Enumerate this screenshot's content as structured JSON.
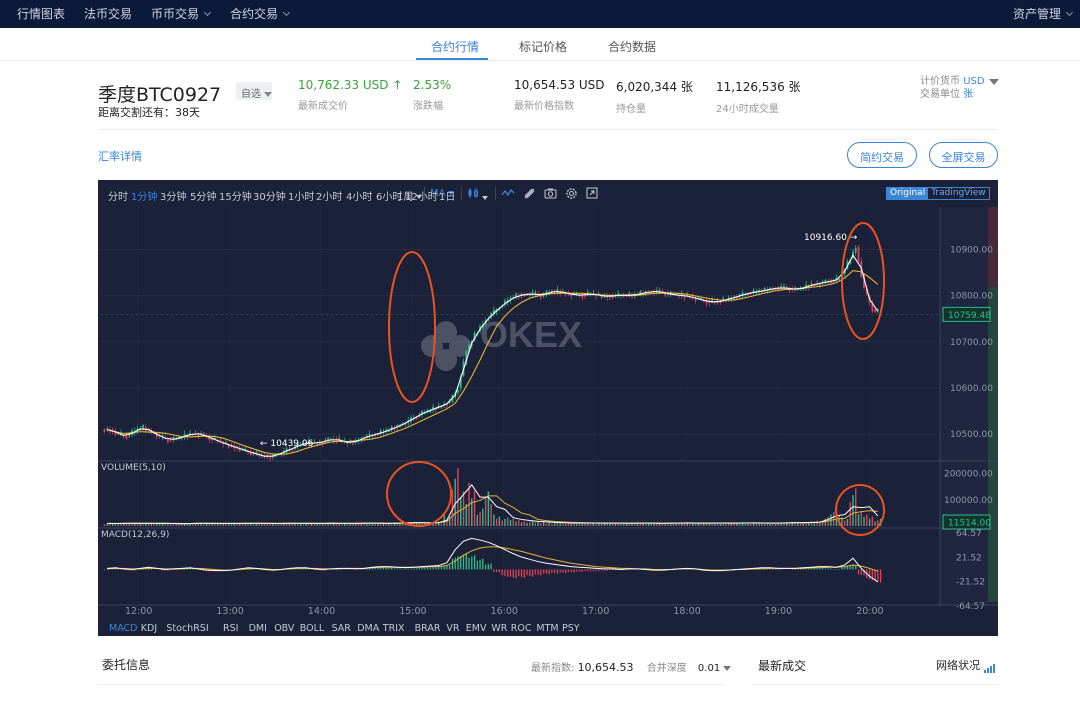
{
  "nav": {
    "items": [
      {
        "label": "行情图表",
        "dropdown": false
      },
      {
        "label": "法币交易",
        "dropdown": false
      },
      {
        "label": "币币交易",
        "dropdown": true
      },
      {
        "label": "合约交易",
        "dropdown": true
      }
    ],
    "asset": "资产管理"
  },
  "subtabs": [
    {
      "label": "合约行情",
      "active": true
    },
    {
      "label": "标记价格",
      "active": false
    },
    {
      "label": "合约数据",
      "active": false
    }
  ],
  "ticker": {
    "symbol": "季度BTC0927",
    "countdown": "距离交割还有：38天",
    "fav": "自选",
    "last_price": "10,762.33 USD",
    "last_price_arrow": "↑",
    "last_price_label": "最新成交价",
    "change": "2.53%",
    "change_label": "涨跌幅",
    "index_price": "10,654.53 USD",
    "index_price_label": "最新价格指数",
    "open_interest": "6,020,344 张",
    "open_interest_label": "持仓量",
    "volume_24h": "11,126,536 张",
    "volume_24h_label": "24小时成交量",
    "quote_currency_label": "计价货币",
    "quote_currency": "USD",
    "trade_unit_label": "交易单位",
    "trade_unit": "张"
  },
  "rate_link": "汇率详情",
  "buttons": {
    "simple_trade": "简约交易",
    "fullscreen_trade": "全屏交易"
  },
  "toolbar": {
    "timeframes": [
      "分时",
      "1分钟",
      "3分钟",
      "5分钟",
      "15分钟",
      "30分钟",
      "1小时",
      "2小时",
      "4小时",
      "6小时",
      "12小时",
      "1日",
      "1周"
    ],
    "active_timeframe": "1分钟",
    "ma_label": "MA",
    "view_original": "Original",
    "view_tradingview": "TradingView",
    "icons": [
      "candle-type-icon",
      "indicator-icon",
      "draw-icon",
      "camera-icon",
      "settings-icon",
      "fullscreen-icon"
    ]
  },
  "chart_data": {
    "type": "candlestick",
    "watermark": "OKEX",
    "time_labels": [
      "12:00",
      "13:00",
      "14:00",
      "15:00",
      "16:00",
      "17:00",
      "18:00",
      "19:00",
      "20:00"
    ],
    "price_ticks": [
      "10900.00",
      "10800.00",
      "10700.00",
      "10600.00",
      "10500.00"
    ],
    "price_range": [
      10442,
      10992
    ],
    "price_high": "10916.60",
    "price_low": "10439.06",
    "current_price": "10759.48",
    "close_series": [
      10510,
      10500,
      10495,
      10508,
      10515,
      10505,
      10495,
      10488,
      10490,
      10496,
      10502,
      10500,
      10492,
      10485,
      10478,
      10472,
      10466,
      10460,
      10455,
      10450,
      10455,
      10462,
      10470,
      10478,
      10482,
      10480,
      10486,
      10490,
      10485,
      10480,
      10488,
      10495,
      10500,
      10505,
      10512,
      10520,
      10528,
      10540,
      10548,
      10555,
      10562,
      10570,
      10600,
      10680,
      10715,
      10740,
      10760,
      10775,
      10790,
      10800,
      10802,
      10805,
      10800,
      10808,
      10810,
      10805,
      10802,
      10800,
      10805,
      10800,
      10798,
      10800,
      10802,
      10800,
      10805,
      10808,
      10810,
      10805,
      10802,
      10800,
      10798,
      10792,
      10788,
      10785,
      10790,
      10795,
      10800,
      10806,
      10808,
      10812,
      10815,
      10818,
      10815,
      10813,
      10820,
      10825,
      10828,
      10832,
      10836,
      10870,
      10905,
      10815,
      10770,
      10762
    ],
    "volume_ticks": [
      "200000.00",
      "100000.00"
    ],
    "volume_range": [
      0,
      240000
    ],
    "volume_label": "VOLUME(5,10)",
    "current_volume": "11514.00",
    "volume_series": [
      10000,
      9000,
      11000,
      12000,
      9000,
      10000,
      11000,
      9000,
      8000,
      9000,
      10000,
      12000,
      9000,
      10000,
      11000,
      9000,
      10000,
      12000,
      9000,
      10000,
      11000,
      9000,
      12000,
      10000,
      9000,
      11000,
      10000,
      12000,
      9000,
      10000,
      11000,
      12000,
      10000,
      11000,
      9000,
      12000,
      14000,
      13000,
      11000,
      12000,
      14000,
      40000,
      200000,
      120000,
      150000,
      60000,
      120000,
      40000,
      30000,
      25000,
      20000,
      18000,
      15000,
      14000,
      12000,
      12000,
      11000,
      12000,
      11000,
      10000,
      12000,
      11000,
      10000,
      11000,
      12000,
      10000,
      11000,
      10000,
      12000,
      11000,
      12000,
      10000,
      11000,
      12000,
      11000,
      10000,
      12000,
      13000,
      11000,
      10000,
      12000,
      11000,
      13000,
      14000,
      12000,
      15000,
      18000,
      40000,
      60000,
      30000,
      130000,
      50000,
      40000,
      25000
    ],
    "macd_label": "MACD(12,26,9)",
    "macd_ticks": [
      "64.57",
      "21.52",
      "-21.52",
      "-64.57"
    ],
    "macd_range": [
      -68,
      68
    ],
    "macd_hist": [
      1,
      2,
      -1,
      -2,
      1,
      3,
      0,
      -2,
      -1,
      1,
      2,
      -1,
      -3,
      -2,
      -1,
      0,
      2,
      3,
      1,
      -1,
      -2,
      0,
      2,
      3,
      2,
      -1,
      -2,
      1,
      2,
      1,
      0,
      2,
      3,
      4,
      3,
      2,
      1,
      2,
      3,
      4,
      5,
      8,
      22,
      28,
      24,
      18,
      10,
      -5,
      -12,
      -15,
      -14,
      -12,
      -10,
      -8,
      -7,
      -6,
      -5,
      -4,
      -3,
      -3,
      -2,
      -1,
      0,
      1,
      0,
      -1,
      -2,
      -2,
      -1,
      0,
      1,
      0,
      -2,
      -3,
      -2,
      -1,
      0,
      1,
      2,
      2,
      1,
      1,
      0,
      1,
      2,
      3,
      2,
      2,
      1,
      5,
      8,
      -10,
      -18,
      -22
    ],
    "macd_dif": [
      2,
      3,
      1,
      0,
      2,
      4,
      2,
      0,
      1,
      2,
      3,
      1,
      -1,
      -2,
      -2,
      -1,
      1,
      3,
      2,
      0,
      -1,
      0,
      2,
      3,
      3,
      1,
      0,
      1,
      2,
      2,
      1,
      2,
      4,
      5,
      5,
      4,
      3,
      4,
      5,
      6,
      7,
      12,
      35,
      50,
      55,
      52,
      48,
      42,
      35,
      28,
      22,
      18,
      14,
      11,
      9,
      7,
      5,
      4,
      3,
      2,
      1,
      1,
      0,
      1,
      1,
      0,
      -1,
      -1,
      0,
      1,
      2,
      1,
      -1,
      -2,
      -2,
      -1,
      0,
      1,
      2,
      3,
      3,
      2,
      2,
      2,
      3,
      4,
      5,
      5,
      4,
      8,
      20,
      2,
      -12,
      -22
    ],
    "macd_dea": [
      1,
      2,
      2,
      1,
      1,
      2,
      2,
      1,
      1,
      1,
      2,
      2,
      1,
      0,
      -1,
      -1,
      0,
      1,
      2,
      1,
      0,
      0,
      1,
      2,
      2,
      2,
      1,
      1,
      1,
      2,
      2,
      2,
      3,
      4,
      4,
      4,
      4,
      4,
      4,
      5,
      5,
      7,
      15,
      25,
      33,
      38,
      40,
      40,
      38,
      35,
      32,
      28,
      24,
      20,
      17,
      14,
      11,
      9,
      7,
      5,
      4,
      3,
      2,
      2,
      1,
      1,
      0,
      0,
      0,
      1,
      1,
      1,
      0,
      -1,
      -1,
      -1,
      0,
      0,
      1,
      1,
      2,
      2,
      2,
      2,
      2,
      3,
      3,
      4,
      4,
      5,
      8,
      6,
      2,
      -3
    ]
  },
  "indicators": [
    "MACD",
    "KDJ",
    "StochRSI",
    "RSI",
    "DMI",
    "OBV",
    "BOLL",
    "SAR",
    "DMA",
    "TRIX",
    "BRAR",
    "VR",
    "EMV",
    "WR",
    "ROC",
    "MTM",
    "PSY"
  ],
  "active_indicator": "MACD",
  "bottom": {
    "orders_title": "委托信息",
    "latest_index_label": "最新指数:",
    "latest_index": "10,654.53",
    "merge_depth_label": "合并深度",
    "merge_depth": "0.01",
    "recent_trades_title": "最新成交",
    "network_status": "网络状况"
  },
  "colors": {
    "nav_bg": "#0b1a38",
    "accent": "#3a86d9",
    "chart_bg": "#1a2138",
    "up": "#2fbd8c",
    "down": "#e0445a",
    "highlight_circle": "#e8541f",
    "ma_fast": "#ffffff",
    "ma_slow": "#e7b533"
  }
}
